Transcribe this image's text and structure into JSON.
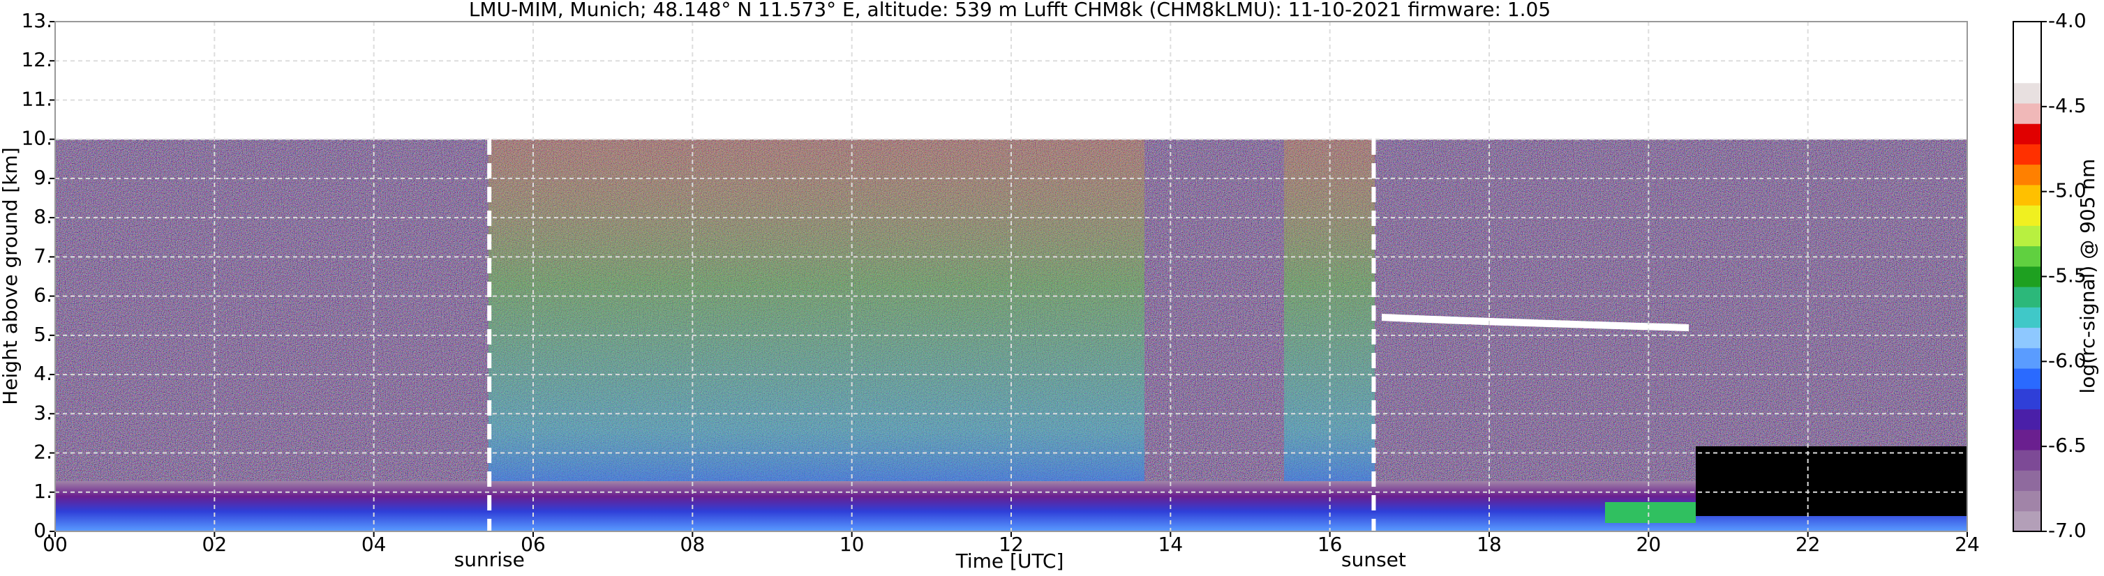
{
  "chart_data": {
    "type": "heatmap",
    "title": "LMU-MIM, Munich; 48.148° N 11.573° E, altitude: 539 m    Lufft CHM8k (CHM8kLMU): 11-10-2021    firmware: 1.05",
    "xlabel": "Time [UTC]",
    "ylabel": "Height above ground [km]",
    "xlim": [
      0,
      24
    ],
    "xticks": [
      {
        "value": 0,
        "label": "00"
      },
      {
        "value": 2,
        "label": "02"
      },
      {
        "value": 4,
        "label": "04"
      },
      {
        "value": 6,
        "label": "06"
      },
      {
        "value": 8,
        "label": "08"
      },
      {
        "value": 10,
        "label": "10"
      },
      {
        "value": 12,
        "label": "12"
      },
      {
        "value": 14,
        "label": "14"
      },
      {
        "value": 16,
        "label": "16"
      },
      {
        "value": 18,
        "label": "18"
      },
      {
        "value": 20,
        "label": "20"
      },
      {
        "value": 22,
        "label": "22"
      },
      {
        "value": 24,
        "label": "24"
      }
    ],
    "ylim": [
      0,
      13
    ],
    "yticks": [
      {
        "value": 0,
        "label": "0."
      },
      {
        "value": 1,
        "label": "1."
      },
      {
        "value": 2,
        "label": "2."
      },
      {
        "value": 3,
        "label": "3."
      },
      {
        "value": 4,
        "label": "4."
      },
      {
        "value": 5,
        "label": "5."
      },
      {
        "value": 6,
        "label": "6."
      },
      {
        "value": 7,
        "label": "7."
      },
      {
        "value": 8,
        "label": "8."
      },
      {
        "value": 9,
        "label": "9."
      },
      {
        "value": 10,
        "label": "10."
      },
      {
        "value": 11,
        "label": "11."
      },
      {
        "value": 12,
        "label": "12."
      },
      {
        "value": 13,
        "label": "13."
      }
    ],
    "grid": true,
    "markers": [
      {
        "x": 5.45,
        "label": "sunrise"
      },
      {
        "x": 16.55,
        "label": "sunset"
      }
    ],
    "colorbar": {
      "label": "log(rc-signal) @ 905 nm",
      "lim": [
        -7,
        -4
      ],
      "ticks": [
        {
          "value": -7,
          "label": "-7.0"
        },
        {
          "value": -6.5,
          "label": "-6.5"
        },
        {
          "value": -6,
          "label": "-6.0"
        },
        {
          "value": -5.5,
          "label": "-5.5"
        },
        {
          "value": -5,
          "label": "-5.0"
        },
        {
          "value": -4.5,
          "label": "-4.5"
        },
        {
          "value": -4,
          "label": "-4.0"
        }
      ],
      "colors": [
        "#b39fb8",
        "#a184a8",
        "#8f6a9e",
        "#7d4a96",
        "#6a1f8f",
        "#4a1fa8",
        "#2f3fd8",
        "#2a6aff",
        "#5a9cff",
        "#8ec8ff",
        "#40c8c8",
        "#2cb87a",
        "#1ea020",
        "#60d040",
        "#b8f040",
        "#f0f020",
        "#ffc000",
        "#ff8000",
        "#ff3000",
        "#e00000",
        "#f0b8b8",
        "#e8e0e0",
        "#ffffff",
        "#ffffff",
        "#ffffff"
      ]
    }
  }
}
